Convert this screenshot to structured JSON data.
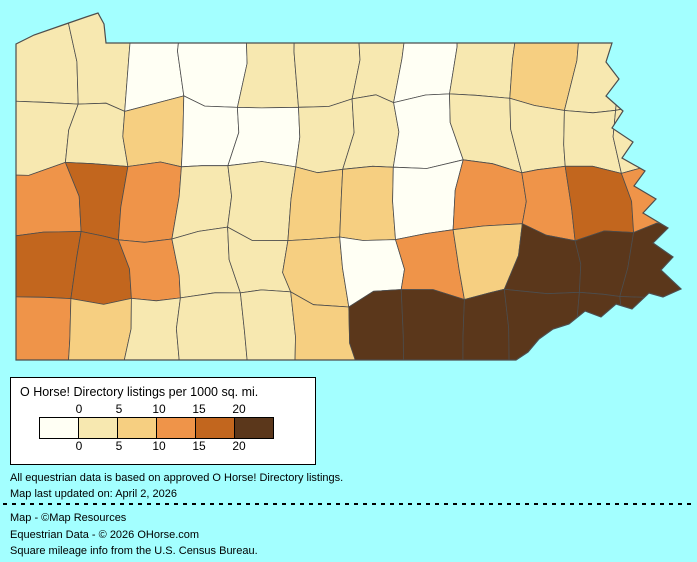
{
  "background_color": "#A3FFFF",
  "map": {
    "region": "Pennsylvania counties",
    "border_color": "#4d4d4d",
    "palette": [
      "#FFFFF4",
      "#F7E8B0",
      "#F6CF81",
      "#EF9449",
      "#C2661E",
      "#5B371B"
    ],
    "grid": [
      [
        1,
        1,
        0,
        0,
        1,
        1,
        1,
        0,
        1,
        2,
        1,
        1
      ],
      [
        1,
        1,
        2,
        0,
        0,
        1,
        1,
        0,
        1,
        1,
        1,
        1
      ],
      [
        3,
        4,
        3,
        1,
        1,
        2,
        2,
        0,
        3,
        3,
        4,
        3
      ],
      [
        4,
        4,
        3,
        1,
        1,
        2,
        0,
        3,
        2,
        5,
        5,
        5
      ],
      [
        3,
        2,
        1,
        1,
        1,
        2,
        5,
        5,
        5,
        5,
        5,
        5
      ]
    ]
  },
  "legend": {
    "title": "O Horse! Directory listings per 1000 sq. mi.",
    "ticks": [
      "0",
      "5",
      "10",
      "15",
      "20"
    ],
    "swatches": [
      "#FFFFF4",
      "#F7E8B0",
      "#F6CF81",
      "#EF9449",
      "#C2661E",
      "#5B371B"
    ]
  },
  "notes": {
    "line1": "All equestrian data is based on approved O Horse! Directory listings.",
    "line2": "Map last updated on: April 2, 2026"
  },
  "credits": {
    "line1": "Map - ©Map Resources",
    "line2": "Equestrian Data - © 2026 OHorse.com",
    "line3": "Square mileage info from the U.S. Census Bureau."
  }
}
